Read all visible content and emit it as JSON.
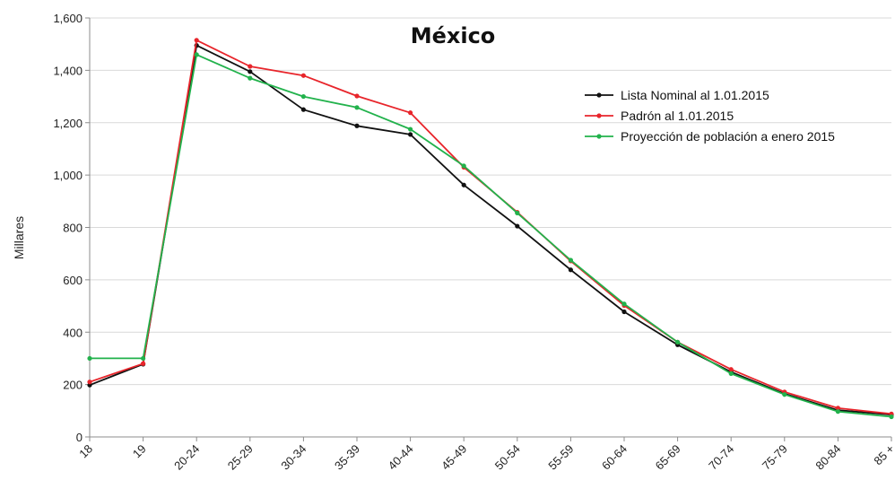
{
  "chart_data": {
    "type": "line",
    "title": "México",
    "xlabel": "",
    "ylabel": "Millares",
    "ylim": [
      0,
      1600
    ],
    "y_ticks": [
      0,
      200,
      400,
      600,
      800,
      1000,
      1200,
      1400,
      1600
    ],
    "y_tick_labels": [
      "0",
      "200",
      "400",
      "600",
      "800",
      "1,000",
      "1,200",
      "1,400",
      "1,600"
    ],
    "grid": "horizontal",
    "legend_position": "top-right",
    "categories": [
      "18",
      "19",
      "20-24",
      "25-29",
      "30-34",
      "35-39",
      "40-44",
      "45-49",
      "50-54",
      "55-59",
      "60-64",
      "65-69",
      "70-74",
      "75-79",
      "80-84",
      "85 +"
    ],
    "series": [
      {
        "name": "Lista Nominal al 1.01.2015",
        "color": "#111111",
        "values": [
          198,
          278,
          1495,
          1395,
          1250,
          1188,
          1155,
          962,
          805,
          638,
          478,
          352,
          248,
          165,
          102,
          85
        ]
      },
      {
        "name": "Padrón al 1.01.2015",
        "color": "#e8252b",
        "values": [
          210,
          280,
          1515,
          1415,
          1380,
          1302,
          1238,
          1030,
          858,
          672,
          502,
          362,
          258,
          172,
          110,
          88
        ]
      },
      {
        "name": "Proyección de población a enero 2015",
        "color": "#22b24c",
        "values": [
          300,
          300,
          1460,
          1370,
          1300,
          1258,
          1175,
          1035,
          855,
          675,
          508,
          362,
          242,
          162,
          97,
          77
        ]
      }
    ]
  }
}
